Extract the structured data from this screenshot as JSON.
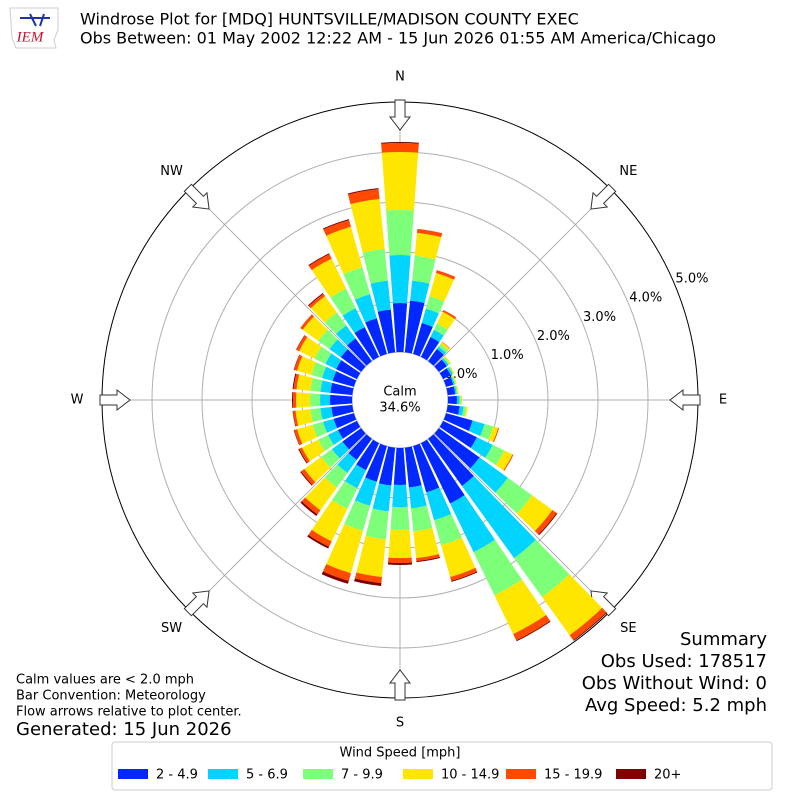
{
  "chart_data": {
    "type": "windrose",
    "title": "Windrose Plot for [MDQ] HUNTSVILLE/MADISON COUNTY EXEC",
    "subtitle": "Obs Between: 01 May 2002 12:22 AM - 15 Jun 2026 01:55 AM America/Chicago",
    "logo": "IEM",
    "x": [
      0,
      10,
      20,
      30,
      40,
      50,
      60,
      70,
      80,
      90,
      100,
      110,
      120,
      130,
      140,
      150,
      160,
      170,
      180,
      190,
      200,
      210,
      220,
      230,
      240,
      250,
      260,
      270,
      280,
      290,
      300,
      310,
      320,
      330,
      340,
      350
    ],
    "xticks": [
      {
        "value": 0,
        "label": "N"
      },
      {
        "value": 45,
        "label": "NE"
      },
      {
        "value": 90,
        "label": "E"
      },
      {
        "value": 135,
        "label": "SE"
      },
      {
        "value": 180,
        "label": "S"
      },
      {
        "value": 225,
        "label": "SW"
      },
      {
        "value": 270,
        "label": "W"
      },
      {
        "value": 315,
        "label": "NW"
      }
    ],
    "ylim": [
      0,
      5
    ],
    "yticks": [
      {
        "value": 0,
        "label": "0.0%"
      },
      {
        "value": 1,
        "label": "1.0%"
      },
      {
        "value": 2,
        "label": "2.0%"
      },
      {
        "value": 3,
        "label": "3.0%"
      },
      {
        "value": 4,
        "label": "4.0%"
      },
      {
        "value": 5,
        "label": "5.0%"
      }
    ],
    "grid": true,
    "calm_label": "Calm",
    "calm_value": 34.6,
    "calm_value_label": "34.6%",
    "legend_title": "Wind Speed [mph]",
    "series": [
      {
        "name": "2 - 4.9",
        "color": "#0028ff",
        "values": [
          0.98,
          1.04,
          0.64,
          0.44,
          0.3,
          0.2,
          0.17,
          0.15,
          0.15,
          0.18,
          0.24,
          0.55,
          0.75,
          1.0,
          1.16,
          1.34,
          0.96,
          0.8,
          0.74,
          0.76,
          0.74,
          0.6,
          0.52,
          0.46,
          0.42,
          0.42,
          0.42,
          0.44,
          0.44,
          0.44,
          0.46,
          0.5,
          0.56,
          0.66,
          0.74,
          0.86
        ]
      },
      {
        "name": "5 - 6.9",
        "color": "#00d4ff",
        "values": [
          0.96,
          0.4,
          0.3,
          0.16,
          0.06,
          0.04,
          0.04,
          0.03,
          0.03,
          0.05,
          0.08,
          0.25,
          0.35,
          0.7,
          1.78,
          1.08,
          0.58,
          0.42,
          0.44,
          0.52,
          0.5,
          0.4,
          0.32,
          0.26,
          0.22,
          0.22,
          0.22,
          0.2,
          0.2,
          0.22,
          0.24,
          0.28,
          0.32,
          0.42,
          0.5,
          0.58
        ]
      },
      {
        "name": "7 - 9.9",
        "color": "#7dff7a",
        "values": [
          0.9,
          0.5,
          0.26,
          0.14,
          0.06,
          0.03,
          0.02,
          0.02,
          0.02,
          0.03,
          0.05,
          0.18,
          0.26,
          0.6,
          0.96,
          0.96,
          0.52,
          0.46,
          0.46,
          0.56,
          0.52,
          0.46,
          0.36,
          0.26,
          0.22,
          0.22,
          0.2,
          0.2,
          0.2,
          0.22,
          0.24,
          0.28,
          0.32,
          0.44,
          0.56,
          0.64
        ]
      },
      {
        "name": "10 - 14.9",
        "color": "#ffe600",
        "values": [
          1.16,
          0.46,
          0.48,
          0.26,
          0.05,
          0.03,
          0.02,
          0.02,
          0.02,
          0.02,
          0.03,
          0.1,
          0.18,
          0.5,
          0.94,
          0.86,
          0.66,
          0.54,
          0.56,
          0.76,
          0.88,
          0.72,
          0.56,
          0.42,
          0.36,
          0.32,
          0.3,
          0.28,
          0.28,
          0.3,
          0.34,
          0.38,
          0.4,
          0.66,
          0.84,
          1.0
        ]
      },
      {
        "name": "15 - 19.9",
        "color": "#ff4a00",
        "values": [
          0.18,
          0.08,
          0.06,
          0.04,
          0.01,
          0,
          0,
          0,
          0,
          0,
          0,
          0.02,
          0.02,
          0.1,
          0.12,
          0.14,
          0.08,
          0.06,
          0.1,
          0.12,
          0.16,
          0.12,
          0.1,
          0.08,
          0.06,
          0.06,
          0.05,
          0.06,
          0.06,
          0.06,
          0.06,
          0.06,
          0.06,
          0.1,
          0.14,
          0.2
        ]
      },
      {
        "name": "20+",
        "color": "#800000",
        "values": [
          0.02,
          0,
          0,
          0,
          0,
          0,
          0,
          0,
          0,
          0,
          0,
          0,
          0,
          0.02,
          0.02,
          0.02,
          0.02,
          0.02,
          0.04,
          0.06,
          0.06,
          0.04,
          0.04,
          0.02,
          0.02,
          0.01,
          0.01,
          0.02,
          0.02,
          0.01,
          0.01,
          0,
          0.02,
          0.02,
          0.02,
          0.02
        ]
      }
    ],
    "summary": [
      "Summary",
      "Obs Used: 178517",
      "Obs Without Wind: 0",
      "Avg Speed: 5.2 mph"
    ],
    "notes": [
      "Calm values are < 2.0 mph",
      "Bar Convention: Meteorology",
      "Flow arrows relative to plot center."
    ],
    "generated": "Generated: 15 Jun 2026"
  }
}
